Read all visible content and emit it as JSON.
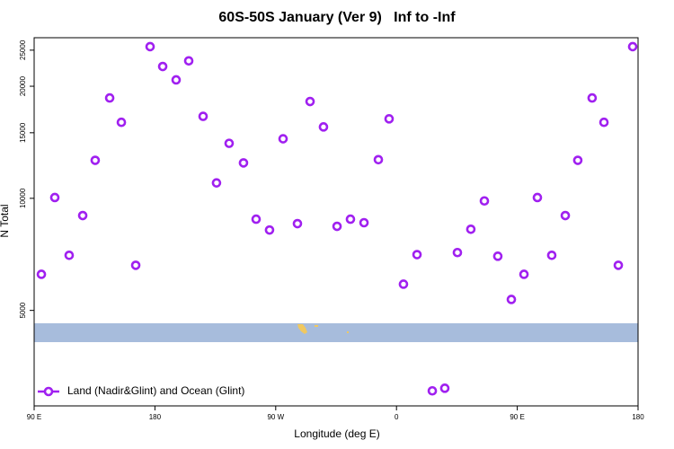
{
  "chart_data": {
    "type": "scatter",
    "title": "60S-50S January (Ver 9)   Inf to -Inf",
    "x_label": "Longitude (deg E)",
    "y_label": "N Total",
    "ylog": true,
    "legend": "bottom-left",
    "xlim": [
      90,
      540
    ],
    "xticks": [
      {
        "value": 90,
        "label": "90 E"
      },
      180,
      {
        "value": 270,
        "label": "90 W"
      },
      {
        "value": 360,
        "label": "0"
      },
      {
        "value": 450,
        "label": "90 E"
      },
      {
        "value": 540,
        "label": "180"
      }
    ],
    "ylim": [
      2770,
      27000
    ],
    "yticks": [
      5000,
      10000,
      15000,
      20000,
      25000
    ],
    "series": [
      {
        "name": "Land (Nadir&Glint) and Ocean (Glint)",
        "color": "#a020f0",
        "x": [
          95.4,
          105.4,
          116.1,
          126.2,
          135.5,
          146.3,
          155,
          165.7,
          176.4,
          185.8,
          195.8,
          205.2,
          215.9,
          225.9,
          235.3,
          246,
          255.4,
          265.4,
          275.5,
          286.2,
          295.6,
          305.6,
          315.7,
          325.7,
          335.8,
          346.5,
          354.5,
          365.2,
          375.3,
          386.7,
          396,
          405.4,
          415.4,
          425.5,
          435.5,
          445.6,
          455,
          465,
          475.7,
          485.8,
          495.1,
          505.8,
          514.6,
          525.3,
          536
        ],
        "values": [
          6250,
          10050,
          7030,
          8990,
          12650,
          18600,
          16000,
          6610,
          25550,
          22600,
          20800,
          23400,
          16600,
          11000,
          14050,
          12450,
          8790,
          8220,
          14450,
          8550,
          18200,
          15550,
          8410,
          8790,
          8600,
          12700,
          16350,
          5880,
          7060,
          3040,
          3090,
          7150,
          8260,
          9840,
          6990,
          5350,
          6250,
          10050,
          7030,
          8990,
          12650,
          18600,
          16000,
          6610,
          25550
        ]
      }
    ]
  }
}
